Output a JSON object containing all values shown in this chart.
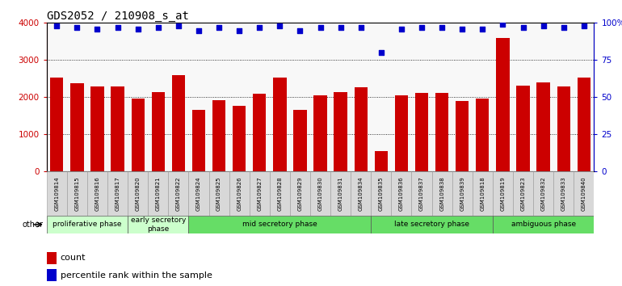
{
  "title": "GDS2052 / 210908_s_at",
  "categories": [
    "GSM109814",
    "GSM109815",
    "GSM109816",
    "GSM109817",
    "GSM109820",
    "GSM109821",
    "GSM109822",
    "GSM109824",
    "GSM109825",
    "GSM109826",
    "GSM109827",
    "GSM109828",
    "GSM109829",
    "GSM109830",
    "GSM109831",
    "GSM109834",
    "GSM109835",
    "GSM109836",
    "GSM109837",
    "GSM109838",
    "GSM109839",
    "GSM109818",
    "GSM109819",
    "GSM109823",
    "GSM109832",
    "GSM109833",
    "GSM109840"
  ],
  "counts": [
    2520,
    2380,
    2280,
    2280,
    1960,
    2130,
    2600,
    1670,
    1920,
    1760,
    2100,
    2530,
    1660,
    2060,
    2140,
    2260,
    560,
    2050,
    2110,
    2110,
    1890,
    1970,
    3600,
    2310,
    2400,
    2300,
    2530
  ],
  "percentile_ranks": [
    98,
    97,
    96,
    97,
    96,
    97,
    98,
    95,
    97,
    95,
    97,
    98,
    95,
    97,
    97,
    97,
    80,
    96,
    97,
    97,
    96,
    96,
    99,
    97,
    98,
    97,
    98
  ],
  "bar_color": "#cc0000",
  "dot_color": "#0000cc",
  "ylim_left": [
    0,
    4000
  ],
  "ylim_right": [
    0,
    100
  ],
  "yticks_left": [
    0,
    1000,
    2000,
    3000,
    4000
  ],
  "yticks_right": [
    0,
    25,
    50,
    75,
    100
  ],
  "ytick_labels_right": [
    "0",
    "25",
    "50",
    "75",
    "100%"
  ],
  "phase_labels": [
    {
      "label": "proliferative phase",
      "start": 0,
      "end": 4,
      "color": "#ccffcc"
    },
    {
      "label": "early secretory\nphase",
      "start": 4,
      "end": 7,
      "color": "#ccffcc"
    },
    {
      "label": "mid secretory phase",
      "start": 7,
      "end": 16,
      "color": "#66dd66"
    },
    {
      "label": "late secretory phase",
      "start": 16,
      "end": 22,
      "color": "#66dd66"
    },
    {
      "label": "ambiguous phase",
      "start": 22,
      "end": 27,
      "color": "#66dd66"
    }
  ],
  "other_label": "other",
  "legend_items": [
    {
      "label": "count",
      "color": "#cc0000"
    },
    {
      "label": "percentile rank within the sample",
      "color": "#0000cc"
    }
  ],
  "title_fontsize": 10
}
